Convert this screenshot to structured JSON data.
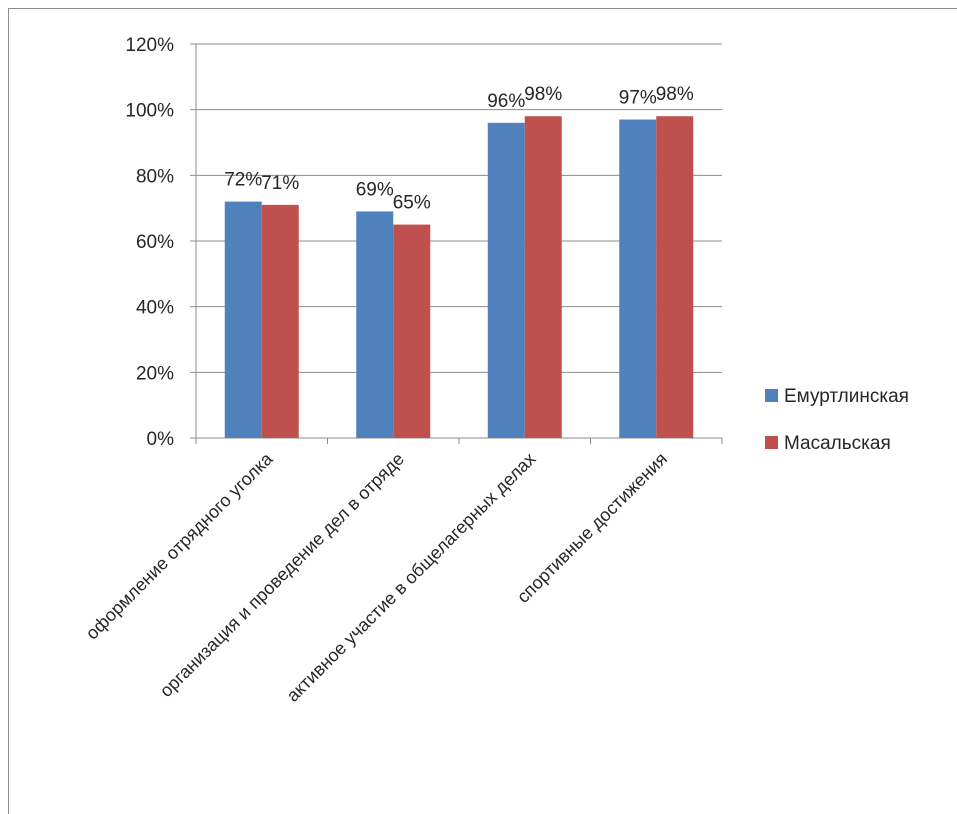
{
  "chart_data": {
    "type": "bar",
    "categories": [
      "оформление отрядного уголка",
      "организация и проведение дел в отряде",
      "активное участие в общелагерных делах",
      "спортивные достижения"
    ],
    "series": [
      {
        "name": "Емуртлинская",
        "values": [
          0.72,
          0.69,
          0.96,
          0.97
        ],
        "labels": [
          "72%",
          "69%",
          "96%",
          "97%"
        ],
        "color": "#4f81bd"
      },
      {
        "name": "Масальская",
        "values": [
          0.71,
          0.65,
          0.98,
          0.98
        ],
        "labels": [
          "71%",
          "65%",
          "98%",
          "98%"
        ],
        "color": "#c0504d"
      }
    ],
    "ylim": [
      0,
      1.2
    ],
    "yticks": [
      "0%",
      "20%",
      "40%",
      "60%",
      "80%",
      "100%",
      "120%"
    ],
    "grid": true,
    "legend_position": "right",
    "title": "",
    "xlabel": "",
    "ylabel": ""
  }
}
